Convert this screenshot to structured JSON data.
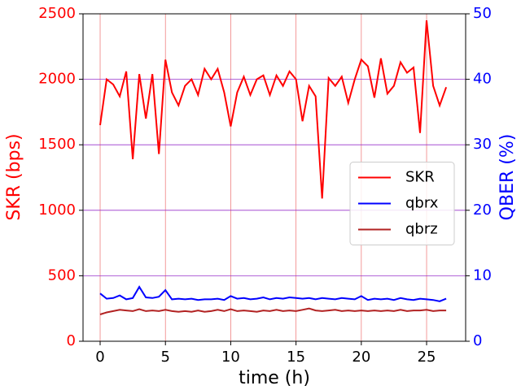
{
  "chart_data": {
    "type": "line",
    "x_label": "time (h)",
    "y_label": "SKR (bps)",
    "y2_label": "QBER (%)",
    "x": [
      0,
      0.5,
      1,
      1.5,
      2,
      2.5,
      3,
      3.5,
      4,
      4.5,
      5,
      5.5,
      6,
      6.5,
      7,
      7.5,
      8,
      8.5,
      9,
      9.5,
      10,
      10.5,
      11,
      11.5,
      12,
      12.5,
      13,
      13.5,
      14,
      14.5,
      15,
      15.5,
      16,
      16.5,
      17,
      17.5,
      18,
      18.5,
      19,
      19.5,
      20,
      20.5,
      21,
      21.5,
      22,
      22.5,
      23,
      23.5,
      24,
      24.5,
      25,
      25.5,
      26,
      26.5
    ],
    "series": [
      {
        "name": "SKR",
        "color": "#ff0000",
        "axis": "y",
        "values": [
          1650,
          2000,
          1960,
          1870,
          2060,
          1390,
          2040,
          1700,
          2040,
          1430,
          2150,
          1900,
          1800,
          1950,
          2000,
          1880,
          2080,
          2000,
          2080,
          1900,
          1640,
          1900,
          2020,
          1880,
          2000,
          2030,
          1880,
          2030,
          1950,
          2060,
          2000,
          1680,
          1950,
          1870,
          1090,
          2010,
          1950,
          2020,
          1820,
          2000,
          2150,
          2100,
          1860,
          2160,
          1890,
          1950,
          2130,
          2050,
          2090,
          1590,
          2450,
          1950,
          1800,
          1940
        ]
      },
      {
        "name": "qbrx",
        "color": "#0000ff",
        "axis": "y2",
        "values": [
          7.3,
          6.5,
          6.6,
          7.0,
          6.4,
          6.6,
          8.3,
          6.7,
          6.6,
          6.8,
          7.8,
          6.4,
          6.5,
          6.4,
          6.5,
          6.3,
          6.4,
          6.4,
          6.5,
          6.3,
          6.9,
          6.5,
          6.6,
          6.4,
          6.5,
          6.7,
          6.4,
          6.6,
          6.5,
          6.7,
          6.6,
          6.5,
          6.6,
          6.4,
          6.6,
          6.5,
          6.4,
          6.6,
          6.5,
          6.4,
          6.9,
          6.3,
          6.5,
          6.4,
          6.5,
          6.3,
          6.6,
          6.4,
          6.3,
          6.5,
          6.4,
          6.3,
          6.1,
          6.5
        ]
      },
      {
        "name": "qbrz",
        "color": "#b22222",
        "axis": "y2",
        "values": [
          4.1,
          4.4,
          4.6,
          4.8,
          4.7,
          4.6,
          4.9,
          4.6,
          4.7,
          4.6,
          4.8,
          4.6,
          4.5,
          4.6,
          4.5,
          4.7,
          4.5,
          4.6,
          4.8,
          4.6,
          4.9,
          4.6,
          4.7,
          4.6,
          4.5,
          4.7,
          4.6,
          4.8,
          4.6,
          4.7,
          4.6,
          4.8,
          5.0,
          4.7,
          4.6,
          4.7,
          4.8,
          4.6,
          4.7,
          4.6,
          4.7,
          4.6,
          4.7,
          4.6,
          4.7,
          4.6,
          4.8,
          4.6,
          4.7,
          4.7,
          4.8,
          4.6,
          4.7,
          4.7
        ]
      }
    ],
    "xlim": [
      -1.31,
      27.99
    ],
    "xticks": [
      0,
      5,
      10,
      15,
      20,
      25
    ],
    "ylim": [
      0,
      2500
    ],
    "yticks": [
      0,
      500,
      1000,
      1500,
      2000,
      2500
    ],
    "y2lim": [
      0,
      50
    ],
    "y2ticks": [
      0,
      10,
      20,
      30,
      40,
      50
    ],
    "y_color": "#ff0000",
    "y2_color": "#0000ff",
    "x_grid_color": "#f08080",
    "y_grid_color": "#9933cc",
    "legend": "center right"
  }
}
